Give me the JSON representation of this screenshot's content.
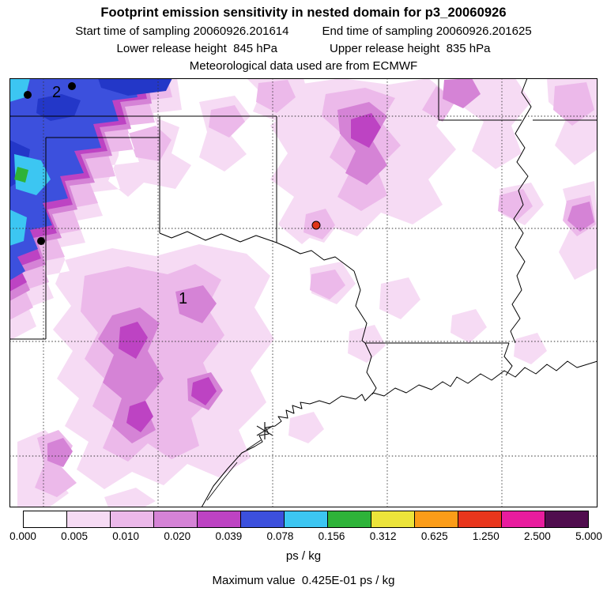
{
  "header": {
    "title": "Footprint emission sensitivity in nested domain for p3_20060926",
    "sampling": {
      "start": "Start time of sampling 20060926.201614",
      "end": "End time of sampling 20060926.201625"
    },
    "release": {
      "lower": "Lower release height  845 hPa",
      "upper": "Upper release height  835 hPa"
    },
    "met_source": "Meteorological data used are from ECMWF"
  },
  "map": {
    "labels": {
      "site1": "1",
      "site2": "2"
    }
  },
  "colorbar": {
    "tick_labels": [
      "0.000",
      "0.005",
      "0.010",
      "0.020",
      "0.039",
      "0.078",
      "0.156",
      "0.312",
      "0.625",
      "1.250",
      "2.500",
      "5.000"
    ],
    "cell_colors": [
      "#ffffff",
      "#f6dbf4",
      "#ecb9ea",
      "#d583d6",
      "#bd43c3",
      "#3c50dd",
      "#3cc6f2",
      "#2eb339",
      "#ece43a",
      "#fb9c18",
      "#e8361c",
      "#e81c9e",
      "#500d4e"
    ],
    "units": "ps / kg"
  },
  "footer": {
    "maximum": "Maximum value  0.425E-01 ps / kg"
  },
  "chart_data": {
    "type": "heatmap",
    "title": "Footprint emission sensitivity in nested domain for p3_20060926",
    "field": "footprint emission sensitivity (filled contours over map)",
    "units": "ps / kg",
    "levels": [
      0.0,
      0.005,
      0.01,
      0.02,
      0.039,
      0.078,
      0.156,
      0.312,
      0.625,
      1.25,
      2.5,
      5.0
    ],
    "level_colors": [
      "#ffffff",
      "#f6dbf4",
      "#ecb9ea",
      "#d583d6",
      "#bd43c3",
      "#3c50dd",
      "#3cc6f2",
      "#2eb339",
      "#ece43a",
      "#fb9c18",
      "#e8361c",
      "#e81c9e",
      "#500d4e"
    ],
    "maximum_value": "0.425E-01 ps / kg",
    "sampling_start": "20060926.201614",
    "sampling_end": "20060926.201625",
    "lower_release_height": "845 hPa",
    "upper_release_height": "835 hPa",
    "met_data_source": "ECMWF",
    "region": "South-central United States: Texas, Oklahoma, Arkansas, Louisiana, Gulf coast",
    "grid": "dashed latitude/longitude gridlines, state borders solid",
    "legend_position": "horizontal colorbar at bottom",
    "features": {
      "high_sensitivity": "blue/cyan wedge in northwest corner of domain",
      "moderate_sensitivity": "purple/magenta patches across Texas panhandle, central Texas, Oklahoma/Arkansas and right edge",
      "markers": [
        {
          "symbol": "black-dot",
          "count": 3,
          "note": "two beside label 2 in NW corner, one on west Texas border"
        },
        {
          "symbol": "red-dot",
          "count": 1,
          "note": "in NE Texas area"
        },
        {
          "symbol": "asterisk",
          "count": 1,
          "note": "near Gulf coast (Houston area)"
        },
        {
          "symbol": "text-labels",
          "labels": [
            "1",
            "2"
          ]
        }
      ]
    }
  }
}
